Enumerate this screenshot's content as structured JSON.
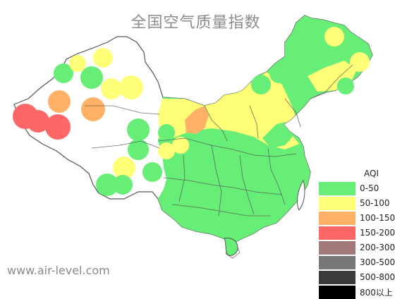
{
  "title": "全国空气质量指数",
  "watermark": "www.air-level.com",
  "legend": {
    "title": "AQI",
    "items": [
      {
        "label": "0-50",
        "color": "#66ee77"
      },
      {
        "label": "50-100",
        "color": "#ffff77"
      },
      {
        "label": "100-150",
        "color": "#ffb266"
      },
      {
        "label": "150-200",
        "color": "#ff6666"
      },
      {
        "label": "200-300",
        "color": "#a27777"
      },
      {
        "label": "300-500",
        "color": "#777777"
      },
      {
        "label": "500-800",
        "color": "#3b3b3b"
      },
      {
        "label": "800以上",
        "color": "#000000"
      }
    ]
  }
}
